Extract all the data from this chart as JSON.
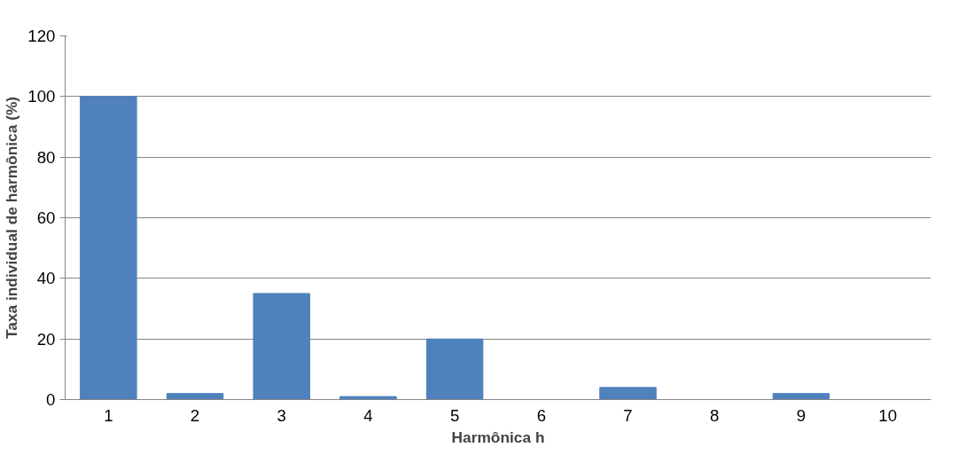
{
  "chart_data": {
    "type": "bar",
    "categories": [
      "1",
      "2",
      "3",
      "4",
      "5",
      "6",
      "7",
      "8",
      "9",
      "10"
    ],
    "values": [
      100,
      2,
      35,
      1,
      20,
      0,
      4,
      0,
      2,
      0
    ],
    "color": "#4f81bd",
    "xlabel": "Harmônica h",
    "ylabel": "Taxa individual de harmônica (%)",
    "ylim": [
      0,
      120
    ],
    "yticks": [
      0,
      20,
      40,
      60,
      80,
      100,
      120
    ],
    "grid": "y"
  }
}
